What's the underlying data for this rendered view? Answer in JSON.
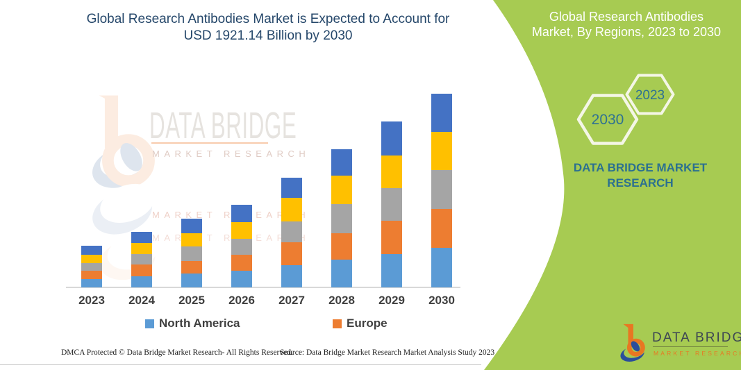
{
  "title": {
    "line1": "Global Research Antibodies Market is Expected to Account for",
    "line2": "USD 1921.14 Billion by 2030"
  },
  "chart_data": {
    "type": "bar",
    "stacked": true,
    "title": "Global Research Antibodies Market is Expected to Account for USD 1921.14 Billion by 2030",
    "categories": [
      "2023",
      "2024",
      "2025",
      "2026",
      "2027",
      "2028",
      "2029",
      "2030"
    ],
    "series": [
      {
        "name": "North America",
        "color": "#5B9BD5",
        "values": [
          12,
          16,
          20,
          24,
          32,
          40,
          48,
          57
        ]
      },
      {
        "name": "Europe",
        "color": "#ED7D31",
        "values": [
          12,
          17,
          18,
          23,
          33,
          38,
          48,
          56
        ]
      },
      {
        "name": "unlabeled-gray",
        "color": "#A5A5A5",
        "values": [
          11,
          15,
          21,
          23,
          30,
          42,
          47,
          56
        ]
      },
      {
        "name": "unlabeled-yellow",
        "color": "#FFC000",
        "values": [
          12,
          16,
          19,
          24,
          34,
          41,
          47,
          55
        ]
      },
      {
        "name": "unlabeled-dark-blue",
        "color": "#4472C4",
        "values": [
          13,
          16,
          21,
          25,
          29,
          38,
          49,
          55
        ]
      }
    ],
    "note": "No y-axis shown; segment values are relative heights read from the image (1 unit = 1 px).",
    "legend_visible": [
      "North America",
      "Europe"
    ],
    "legend_position": "bottom",
    "grid": false
  },
  "legend": {
    "items": [
      {
        "label": "North America",
        "color": "#5B9BD5"
      },
      {
        "label": "Europe",
        "color": "#ED7D31"
      }
    ]
  },
  "watermark": {
    "wordmark": "DATA BRIDGE",
    "subtext": "MARKET RESEARCH",
    "subtext2": "MARKET RESEARCH",
    "subtext3": "MARKET RESEARCH"
  },
  "side_panel": {
    "bg_color": "#A7CB52",
    "heading_line1": "Global Research Antibodies",
    "heading_line2": "Market, By Regions, 2023 to 2030",
    "hexagon_large_label": "2030",
    "hexagon_small_label": "2023",
    "brand_line1": "DATA BRIDGE MARKET",
    "brand_line2": "RESEARCH"
  },
  "logo": {
    "name": "DATA BRIDGE",
    "tagline": "MARKET RESEARCH"
  },
  "footer": {
    "left": "DMCA Protected © Data Bridge Market Research-  All Rights Reserved.",
    "right": "Source: Data Bridge Market Research  Market Analysis Study 2023"
  }
}
